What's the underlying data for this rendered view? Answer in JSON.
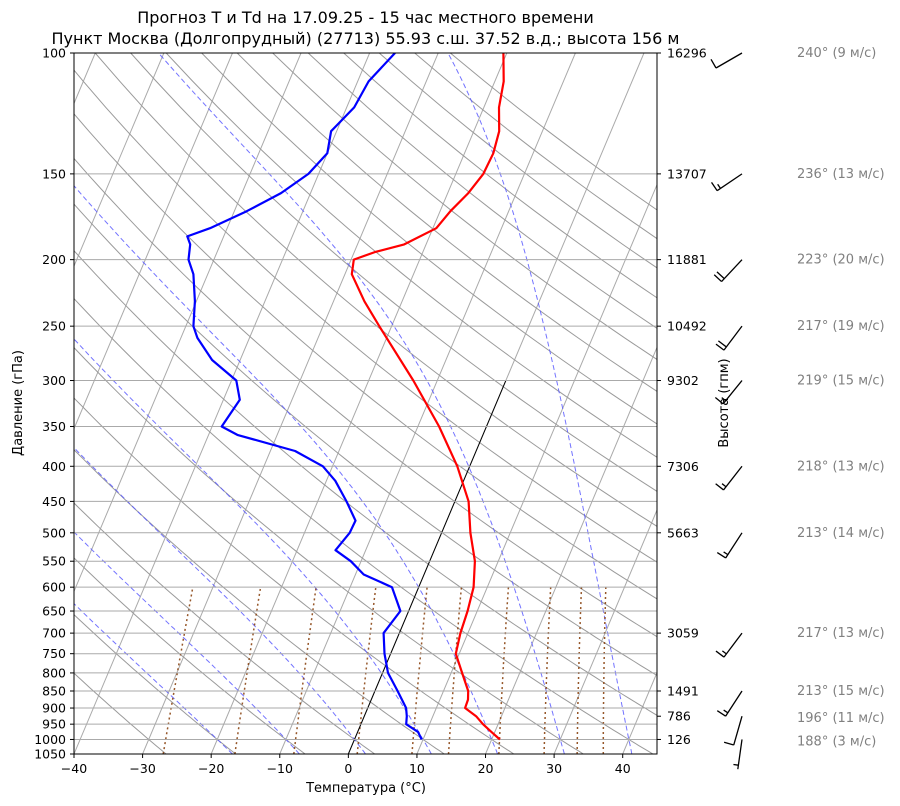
{
  "title": "Прогноз T и Td на 17.09.25 - 15 час местного времени",
  "subtitle": "Пункт Москва (Долгопрудный) (27713) 55.93 с.ш. 37.52 в.д.; высота 156 м",
  "chart_data": {
    "type": "line",
    "title": "Прогноз T и Td на 17.09.25 - 15 час местного времени",
    "subtitle": "Пункт Москва (Долгопрудный) (27713) 55.93 с.ш. 37.52 в.д.; высота 156 м",
    "xlabel": "Температура (°C)",
    "ylabel": "Давление (гПа)",
    "y2label": "Высота (гпм)",
    "xlim": [
      -40,
      45
    ],
    "ylim": [
      1050,
      100
    ],
    "y_scale": "log",
    "grid": true,
    "x_ticks": [
      "−40",
      "−30",
      "−20",
      "−10",
      "0",
      "10",
      "20",
      "30",
      "40"
    ],
    "y_ticks": [
      "100",
      "150",
      "200",
      "250",
      "300",
      "350",
      "400",
      "450",
      "500",
      "550",
      "600",
      "650",
      "700",
      "750",
      "800",
      "850",
      "900",
      "950",
      "1000",
      "1050"
    ],
    "height_ticks": [
      {
        "p": 100,
        "label": "16296"
      },
      {
        "p": 150,
        "label": "13707"
      },
      {
        "p": 200,
        "label": "11881"
      },
      {
        "p": 250,
        "label": "10492"
      },
      {
        "p": 300,
        "label": "9302"
      },
      {
        "p": 400,
        "label": "7306"
      },
      {
        "p": 500,
        "label": "5663"
      },
      {
        "p": 700,
        "label": "3059"
      },
      {
        "p": 850,
        "label": "1491"
      },
      {
        "p": 925,
        "label": "786"
      },
      {
        "p": 1000,
        "label": "126"
      }
    ],
    "series": [
      {
        "key": "T",
        "color": "#ff0000",
        "points": [
          [
            1000,
            21.2
          ],
          [
            975,
            19.5
          ],
          [
            950,
            17.8
          ],
          [
            925,
            16.3
          ],
          [
            900,
            14.2
          ],
          [
            875,
            14.1
          ],
          [
            850,
            13.6
          ],
          [
            800,
            11.6
          ],
          [
            750,
            9.5
          ],
          [
            700,
            8.9
          ],
          [
            650,
            8.6
          ],
          [
            600,
            8.0
          ],
          [
            550,
            6.6
          ],
          [
            500,
            4.2
          ],
          [
            450,
            2.0
          ],
          [
            400,
            -1.8
          ],
          [
            350,
            -6.9
          ],
          [
            300,
            -13.5
          ],
          [
            250,
            -21.8
          ],
          [
            230,
            -25.5
          ],
          [
            210,
            -29.0
          ],
          [
            200,
            -29.6
          ],
          [
            195,
            -27.0
          ],
          [
            190,
            -23.2
          ],
          [
            180,
            -19.5
          ],
          [
            170,
            -18.5
          ],
          [
            160,
            -17.0
          ],
          [
            150,
            -16.0
          ],
          [
            140,
            -15.8
          ],
          [
            130,
            -16.3
          ],
          [
            120,
            -17.8
          ],
          [
            110,
            -18.7
          ],
          [
            100,
            -20.5
          ]
        ]
      },
      {
        "key": "Td",
        "color": "#0000ff",
        "points": [
          [
            1000,
            9.8
          ],
          [
            975,
            8.8
          ],
          [
            950,
            6.6
          ],
          [
            925,
            6.2
          ],
          [
            900,
            5.6
          ],
          [
            850,
            3.3
          ],
          [
            800,
            0.8
          ],
          [
            750,
            -0.9
          ],
          [
            700,
            -2.3
          ],
          [
            650,
            -1.2
          ],
          [
            600,
            -3.9
          ],
          [
            575,
            -8.8
          ],
          [
            550,
            -11.5
          ],
          [
            530,
            -14.4
          ],
          [
            500,
            -13.4
          ],
          [
            480,
            -13.3
          ],
          [
            450,
            -15.8
          ],
          [
            420,
            -18.7
          ],
          [
            400,
            -21.4
          ],
          [
            380,
            -26.4
          ],
          [
            360,
            -35.8
          ],
          [
            350,
            -38.6
          ],
          [
            320,
            -37.6
          ],
          [
            300,
            -39.3
          ],
          [
            280,
            -44.1
          ],
          [
            260,
            -47.6
          ],
          [
            250,
            -48.9
          ],
          [
            230,
            -50.2
          ],
          [
            210,
            -52.1
          ],
          [
            200,
            -53.7
          ],
          [
            190,
            -54.4
          ],
          [
            185,
            -55.3
          ],
          [
            180,
            -52.5
          ],
          [
            170,
            -48.2
          ],
          [
            160,
            -44.3
          ],
          [
            150,
            -41.5
          ],
          [
            140,
            -40.0
          ],
          [
            130,
            -40.8
          ],
          [
            120,
            -38.9
          ],
          [
            110,
            -38.4
          ],
          [
            100,
            -36.3
          ]
        ]
      }
    ],
    "winds": [
      {
        "p": 100,
        "label": "240° (9 м/с)",
        "dir": 240,
        "speed": 9
      },
      {
        "p": 150,
        "label": "236° (13 м/с)",
        "dir": 236,
        "speed": 13
      },
      {
        "p": 200,
        "label": "223° (20 м/с)",
        "dir": 223,
        "speed": 20
      },
      {
        "p": 250,
        "label": "217° (19 м/с)",
        "dir": 217,
        "speed": 19
      },
      {
        "p": 300,
        "label": "219° (15 м/с)",
        "dir": 219,
        "speed": 15
      },
      {
        "p": 400,
        "label": "218° (13 м/с)",
        "dir": 218,
        "speed": 13
      },
      {
        "p": 500,
        "label": "213° (14 м/с)",
        "dir": 213,
        "speed": 14
      },
      {
        "p": 700,
        "label": "217° (13 м/с)",
        "dir": 217,
        "speed": 13
      },
      {
        "p": 850,
        "label": "213° (15 м/с)",
        "dir": 213,
        "speed": 15
      },
      {
        "p": 925,
        "label": "196° (11 м/с)",
        "dir": 196,
        "speed": 11
      },
      {
        "p": 1000,
        "label": "188° (3 м/с)",
        "dir": 188,
        "speed": 3
      }
    ]
  }
}
